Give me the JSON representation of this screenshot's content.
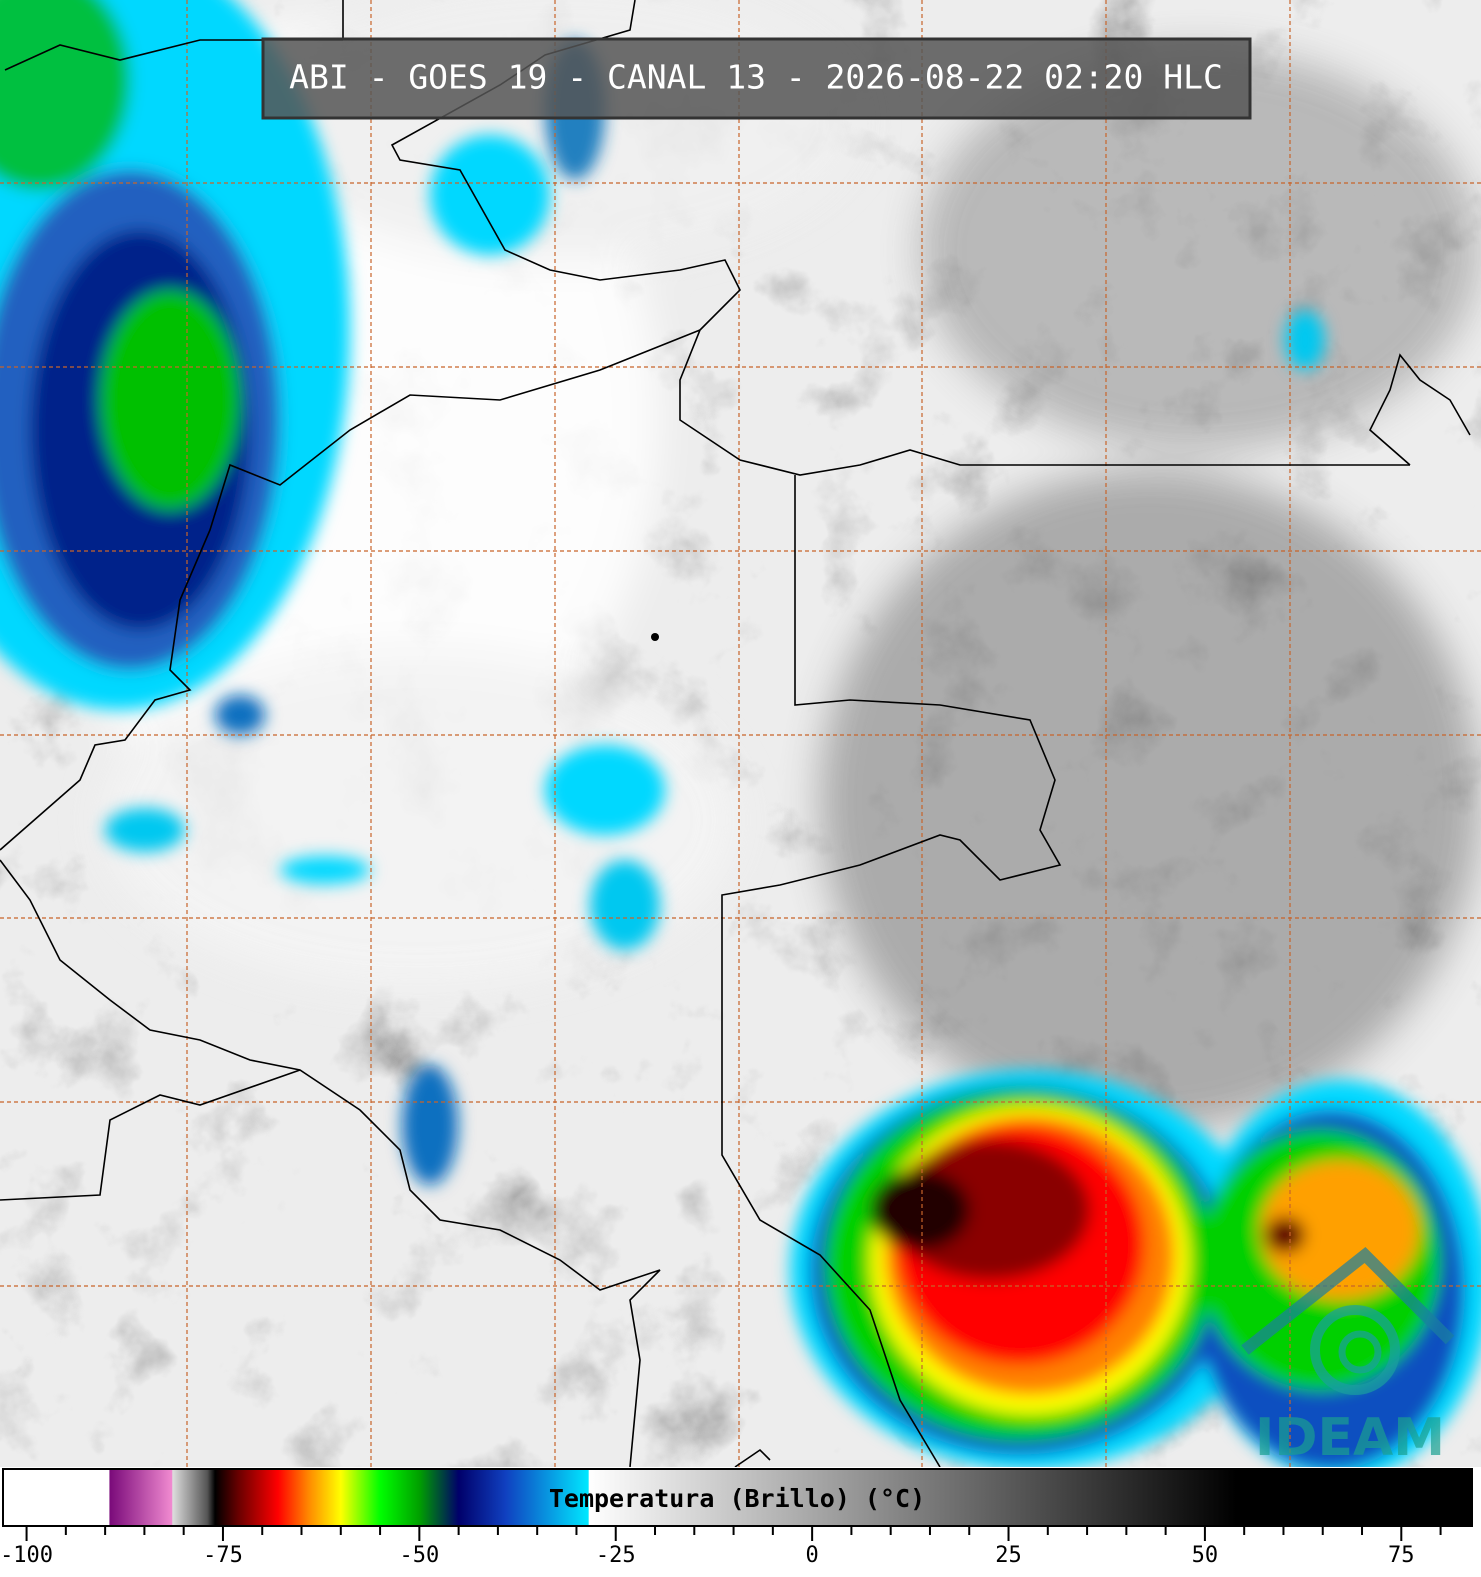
{
  "header": {
    "title": "ABI - GOES 19 - CANAL 13 - 2026-08-22 02:20 HLC"
  },
  "logo": {
    "text": "IDEAM"
  },
  "colorbar": {
    "label": "Temperatura (Brillo) (°C)",
    "lim": [
      -103,
      84
    ],
    "ticks": [
      -100,
      -75,
      -50,
      -25,
      0,
      25,
      50,
      75
    ],
    "minor_ticks": [
      -95,
      -90,
      -85,
      -80,
      -70,
      -65,
      -60,
      -55,
      -45,
      -40,
      -35,
      -30,
      -20,
      -15,
      -10,
      -5,
      5,
      10,
      15,
      20,
      30,
      35,
      40,
      45,
      55,
      60,
      65,
      70,
      80
    ],
    "stops": [
      {
        "value": -103,
        "color": "#ffffff"
      },
      {
        "value": -89.5,
        "color": "#ffffff"
      },
      {
        "value": -89.4,
        "color": "#7a0a7a"
      },
      {
        "value": -81.5,
        "color": "#f08ad0"
      },
      {
        "value": -81.4,
        "color": "#dddddd"
      },
      {
        "value": -77,
        "color": "#555555"
      },
      {
        "value": -76,
        "color": "#000000"
      },
      {
        "value": -73,
        "color": "#6a0000"
      },
      {
        "value": -68,
        "color": "#ff0000"
      },
      {
        "value": -64,
        "color": "#ff8c00"
      },
      {
        "value": -60,
        "color": "#ffff00"
      },
      {
        "value": -55,
        "color": "#00ff00"
      },
      {
        "value": -50,
        "color": "#00a000"
      },
      {
        "value": -45,
        "color": "#00006a"
      },
      {
        "value": -39,
        "color": "#1040c0"
      },
      {
        "value": -28.5,
        "color": "#00e8ff"
      },
      {
        "value": -28.4,
        "color": "#ffffff"
      },
      {
        "value": 54,
        "color": "#000000"
      },
      {
        "value": 84,
        "color": "#000000"
      }
    ]
  }
}
